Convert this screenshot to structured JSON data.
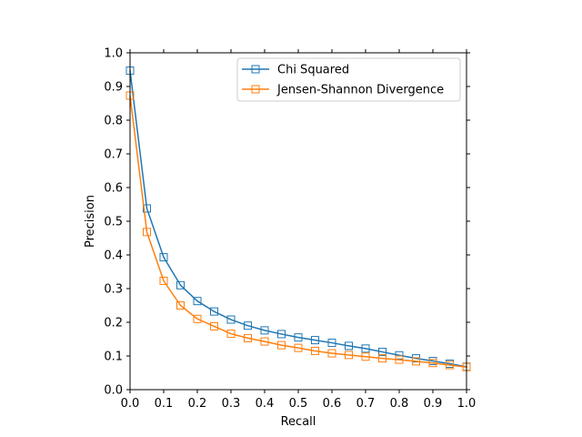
{
  "chart_data": {
    "type": "line",
    "xlabel": "Recall",
    "ylabel": "Precision",
    "xlim": [
      0,
      1
    ],
    "ylim": [
      0,
      1
    ],
    "xticks": [
      "0.0",
      "0.1",
      "0.2",
      "0.3",
      "0.4",
      "0.5",
      "0.6",
      "0.7",
      "0.8",
      "0.9",
      "1.0"
    ],
    "yticks": [
      "0.0",
      "0.1",
      "0.2",
      "0.3",
      "0.4",
      "0.5",
      "0.6",
      "0.7",
      "0.8",
      "0.9",
      "1.0"
    ],
    "grid": false,
    "legend_position": "top-right",
    "marker": "open-square",
    "x": [
      0.0,
      0.05,
      0.1,
      0.15,
      0.2,
      0.25,
      0.3,
      0.35,
      0.4,
      0.45,
      0.5,
      0.55,
      0.6,
      0.65,
      0.7,
      0.75,
      0.8,
      0.85,
      0.9,
      0.95,
      1.0
    ],
    "series": [
      {
        "name": "Chi Squared",
        "color": "#1f77b4",
        "values": [
          0.947,
          0.538,
          0.393,
          0.31,
          0.263,
          0.232,
          0.208,
          0.19,
          0.176,
          0.165,
          0.155,
          0.147,
          0.139,
          0.13,
          0.122,
          0.112,
          0.102,
          0.093,
          0.085,
          0.077,
          0.068
        ]
      },
      {
        "name": "Jensen-Shannon Divergence",
        "color": "#ff7f0e",
        "values": [
          0.873,
          0.468,
          0.323,
          0.25,
          0.21,
          0.188,
          0.166,
          0.153,
          0.143,
          0.132,
          0.124,
          0.115,
          0.108,
          0.103,
          0.098,
          0.093,
          0.089,
          0.084,
          0.079,
          0.073,
          0.067
        ]
      }
    ]
  }
}
